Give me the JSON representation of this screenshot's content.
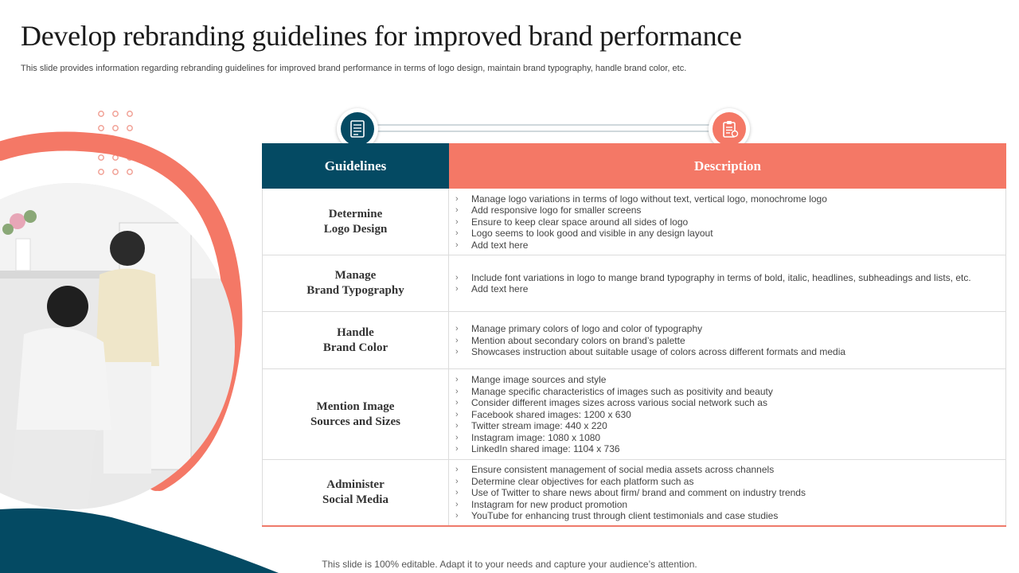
{
  "title": "Develop rebranding guidelines for improved brand performance",
  "subtitle": "This slide provides information regarding rebranding guidelines for improved brand performance in terms of logo design, maintain brand typography, handle brand color, etc.",
  "footer": "This slide is 100% editable. Adapt it to your needs and capture your audience’s attention.",
  "colors": {
    "teal": "#044a63",
    "coral": "#f47866"
  },
  "icons": {
    "left": "checklist-document-icon",
    "right": "clipboard-gear-icon"
  },
  "table": {
    "headers": {
      "guidelines": "Guidelines",
      "description": "Description"
    },
    "rows": [
      {
        "guideline": "Determine\nLogo Design",
        "items": [
          "Manage logo variations in terms of logo without text,  vertical logo, monochrome logo",
          "Add responsive logo for smaller screens",
          "Ensure to keep clear space around all sides of logo",
          "Logo seems to look good and visible in any design layout",
          "Add text here"
        ]
      },
      {
        "guideline": "Manage\nBrand Typography",
        "items": [
          "Include font variations in logo to mange brand typography in terms of bold, italic, headlines, subheadings and lists, etc.",
          "Add text here"
        ]
      },
      {
        "guideline": "Handle\nBrand Color",
        "items": [
          "Manage primary colors of logo and color of typography",
          "Mention about secondary colors on brand’s palette",
          "Showcases instruction about suitable usage of colors across different formats and media"
        ]
      },
      {
        "guideline": "Mention Image\nSources and Sizes",
        "items": [
          "Mange image sources and style",
          "Manage specific characteristics of images such as positivity and beauty",
          "Consider different images sizes across various social network such as",
          "Facebook shared images: 1200 x 630",
          "Twitter stream image: 440 x 220",
          "Instagram image: 1080 x 1080",
          "LinkedIn shared image: 1104 x 736"
        ]
      },
      {
        "guideline": "Administer\nSocial Media",
        "items": [
          "Ensure consistent management of social media assets across channels",
          "Determine clear objectives for each platform such as",
          "Use of Twitter to  share news about firm/ brand and comment on industry trends",
          "Instagram for new product promotion",
          "YouTube for enhancing trust through client testimonials and case studies"
        ]
      }
    ]
  }
}
